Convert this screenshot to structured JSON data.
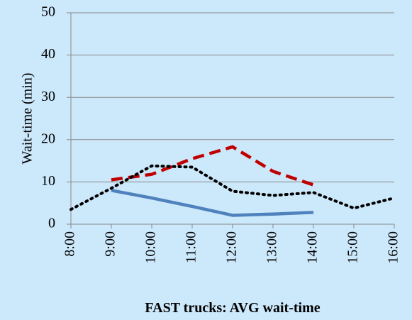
{
  "chart_data": {
    "type": "line",
    "title": "FAST trucks: AVG wait-time",
    "y_label": "Wait-time (min)",
    "categories": [
      "8:00",
      "9:00",
      "10:00",
      "11:00",
      "12:00",
      "13:00",
      "14:00",
      "15:00",
      "16:00"
    ],
    "series": [
      {
        "color": "#4f81bd",
        "dash": "solid",
        "values": [
          null,
          8.0,
          6.2,
          4.2,
          2.1,
          2.4,
          2.8,
          null,
          null
        ]
      },
      {
        "color": "#c00000",
        "dash": "dashed",
        "values": [
          null,
          10.5,
          11.8,
          15.5,
          18.3,
          12.5,
          9.3,
          null,
          null
        ]
      },
      {
        "color": "#000000",
        "dash": "dotted",
        "values": [
          3.5,
          8.5,
          13.8,
          13.5,
          7.8,
          6.8,
          7.5,
          3.8,
          6.2
        ]
      }
    ],
    "ylim": [
      0,
      50
    ],
    "yticks": [
      0,
      10,
      20,
      30,
      40,
      50
    ],
    "grid": true
  }
}
